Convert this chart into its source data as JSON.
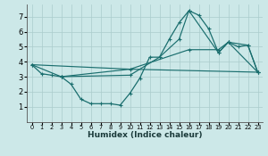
{
  "xlabel": "Humidex (Indice chaleur)",
  "bg_color": "#cce8e8",
  "grid_color": "#aacccc",
  "line_color": "#1a6e6e",
  "xlim": [
    -0.5,
    23.5
  ],
  "ylim": [
    0,
    7.8
  ],
  "xticks": [
    0,
    1,
    2,
    3,
    4,
    5,
    6,
    7,
    8,
    9,
    10,
    11,
    12,
    13,
    14,
    15,
    16,
    17,
    18,
    19,
    20,
    21,
    22,
    23
  ],
  "yticks": [
    1,
    2,
    3,
    4,
    5,
    6,
    7
  ],
  "curve1_x": [
    0,
    1,
    2,
    3,
    4,
    5,
    6,
    7,
    8,
    9,
    10,
    11,
    12,
    13,
    14,
    15,
    16,
    17,
    18,
    19,
    20,
    21,
    22,
    23
  ],
  "curve1_y": [
    3.8,
    3.2,
    3.1,
    3.0,
    2.5,
    1.5,
    1.2,
    1.2,
    1.2,
    1.1,
    1.9,
    2.9,
    4.3,
    4.3,
    5.5,
    6.6,
    7.4,
    7.1,
    6.2,
    4.6,
    5.3,
    5.0,
    5.1,
    3.3
  ],
  "curve2_x": [
    0,
    3,
    10,
    13,
    15,
    16,
    19,
    20,
    22,
    23
  ],
  "curve2_y": [
    3.8,
    3.0,
    3.1,
    4.3,
    5.5,
    7.4,
    4.6,
    5.3,
    5.1,
    3.3
  ],
  "curve3_x": [
    0,
    10,
    23
  ],
  "curve3_y": [
    3.8,
    3.5,
    3.3
  ],
  "curve4_x": [
    3,
    10,
    16,
    19,
    20,
    23
  ],
  "curve4_y": [
    3.0,
    3.5,
    4.8,
    4.8,
    5.3,
    3.3
  ]
}
